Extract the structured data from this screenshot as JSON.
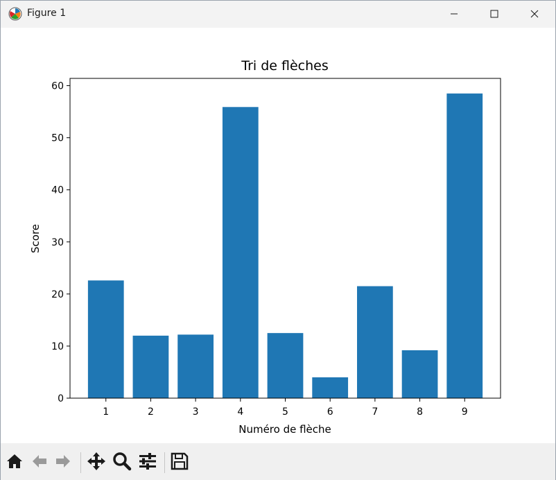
{
  "window": {
    "title": "Figure 1"
  },
  "icons": {
    "app": "matplotlib-figure-icon",
    "minimize": "minimize-icon",
    "maximize": "maximize-icon",
    "close": "close-icon",
    "home": "home-icon",
    "back": "back-arrow-icon",
    "forward": "forward-arrow-icon",
    "pan": "pan-move-icon",
    "zoom": "zoom-magnifier-icon",
    "configure": "configure-subplots-icon",
    "save": "save-floppy-icon"
  },
  "colors": {
    "bar": "#1f77b4",
    "axes": "#000000",
    "toolbar_bg": "#f0f0f0",
    "titlebar_bg": "#f3f3f3"
  },
  "chart_data": {
    "type": "bar",
    "title": "Tri de flèches",
    "xlabel": "Numéro de flèche",
    "ylabel": "Score",
    "categories": [
      "1",
      "2",
      "3",
      "4",
      "5",
      "6",
      "7",
      "8",
      "9"
    ],
    "values": [
      22.6,
      12.0,
      12.2,
      55.9,
      12.5,
      4.0,
      21.5,
      9.2,
      58.5
    ],
    "ylim": [
      0,
      61.4
    ],
    "yticks": [
      0,
      10,
      20,
      30,
      40,
      50,
      60
    ],
    "grid": false,
    "legend": "none"
  }
}
